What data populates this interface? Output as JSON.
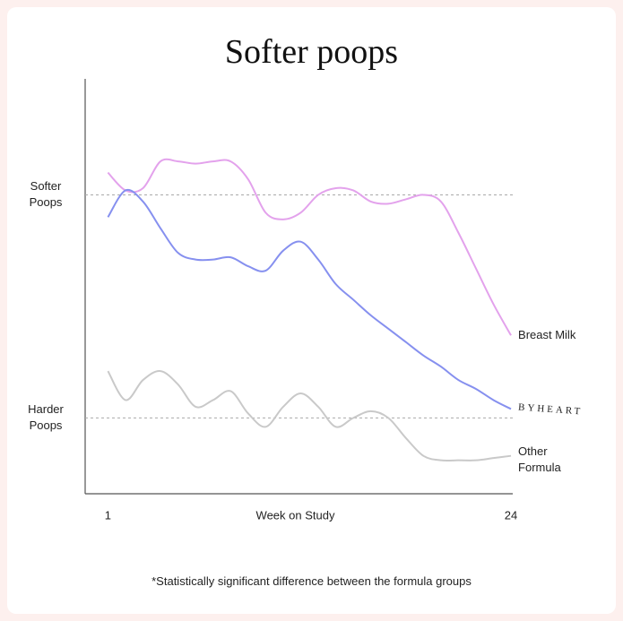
{
  "chart_data": {
    "type": "line",
    "title": "Softer poops",
    "x_label": "Week on Study",
    "footnote": "*Statistically significant difference between the formula groups",
    "x": [
      1,
      2,
      3,
      4,
      5,
      6,
      7,
      8,
      9,
      10,
      11,
      12,
      13,
      14,
      15,
      16,
      17,
      18,
      19,
      20,
      21,
      22,
      23,
      24
    ],
    "xlim": [
      -0.3,
      24.1
    ],
    "xticks": [
      1,
      24
    ],
    "ylim": [
      -0.34,
      1.52
    ],
    "yticks": [
      {
        "value": 0,
        "label": "Harder Poops"
      },
      {
        "value": 1,
        "label": "Softer Poops"
      }
    ],
    "grid": true,
    "series": [
      {
        "name": "Breast Milk",
        "color": "#e3a2ec",
        "values": [
          1.1,
          1.02,
          1.03,
          1.15,
          1.15,
          1.14,
          1.15,
          1.15,
          1.07,
          0.92,
          0.89,
          0.92,
          1.0,
          1.03,
          1.02,
          0.97,
          0.96,
          0.98,
          1.0,
          0.97,
          0.83,
          0.67,
          0.51,
          0.37
        ]
      },
      {
        "name": "BYHEART",
        "color": "#8690ef",
        "values": [
          0.9,
          1.02,
          0.97,
          0.85,
          0.74,
          0.71,
          0.71,
          0.72,
          0.68,
          0.66,
          0.75,
          0.79,
          0.71,
          0.6,
          0.53,
          0.46,
          0.4,
          0.34,
          0.28,
          0.23,
          0.17,
          0.13,
          0.08,
          0.04
        ]
      },
      {
        "name": "Other Formula",
        "color": "#c9c9c9",
        "values": [
          0.21,
          0.08,
          0.17,
          0.21,
          0.15,
          0.05,
          0.08,
          0.12,
          0.02,
          -0.04,
          0.05,
          0.11,
          0.05,
          -0.04,
          0.0,
          0.03,
          0.0,
          -0.09,
          -0.17,
          -0.19,
          -0.19,
          -0.19,
          -0.18,
          -0.17
        ]
      }
    ]
  }
}
